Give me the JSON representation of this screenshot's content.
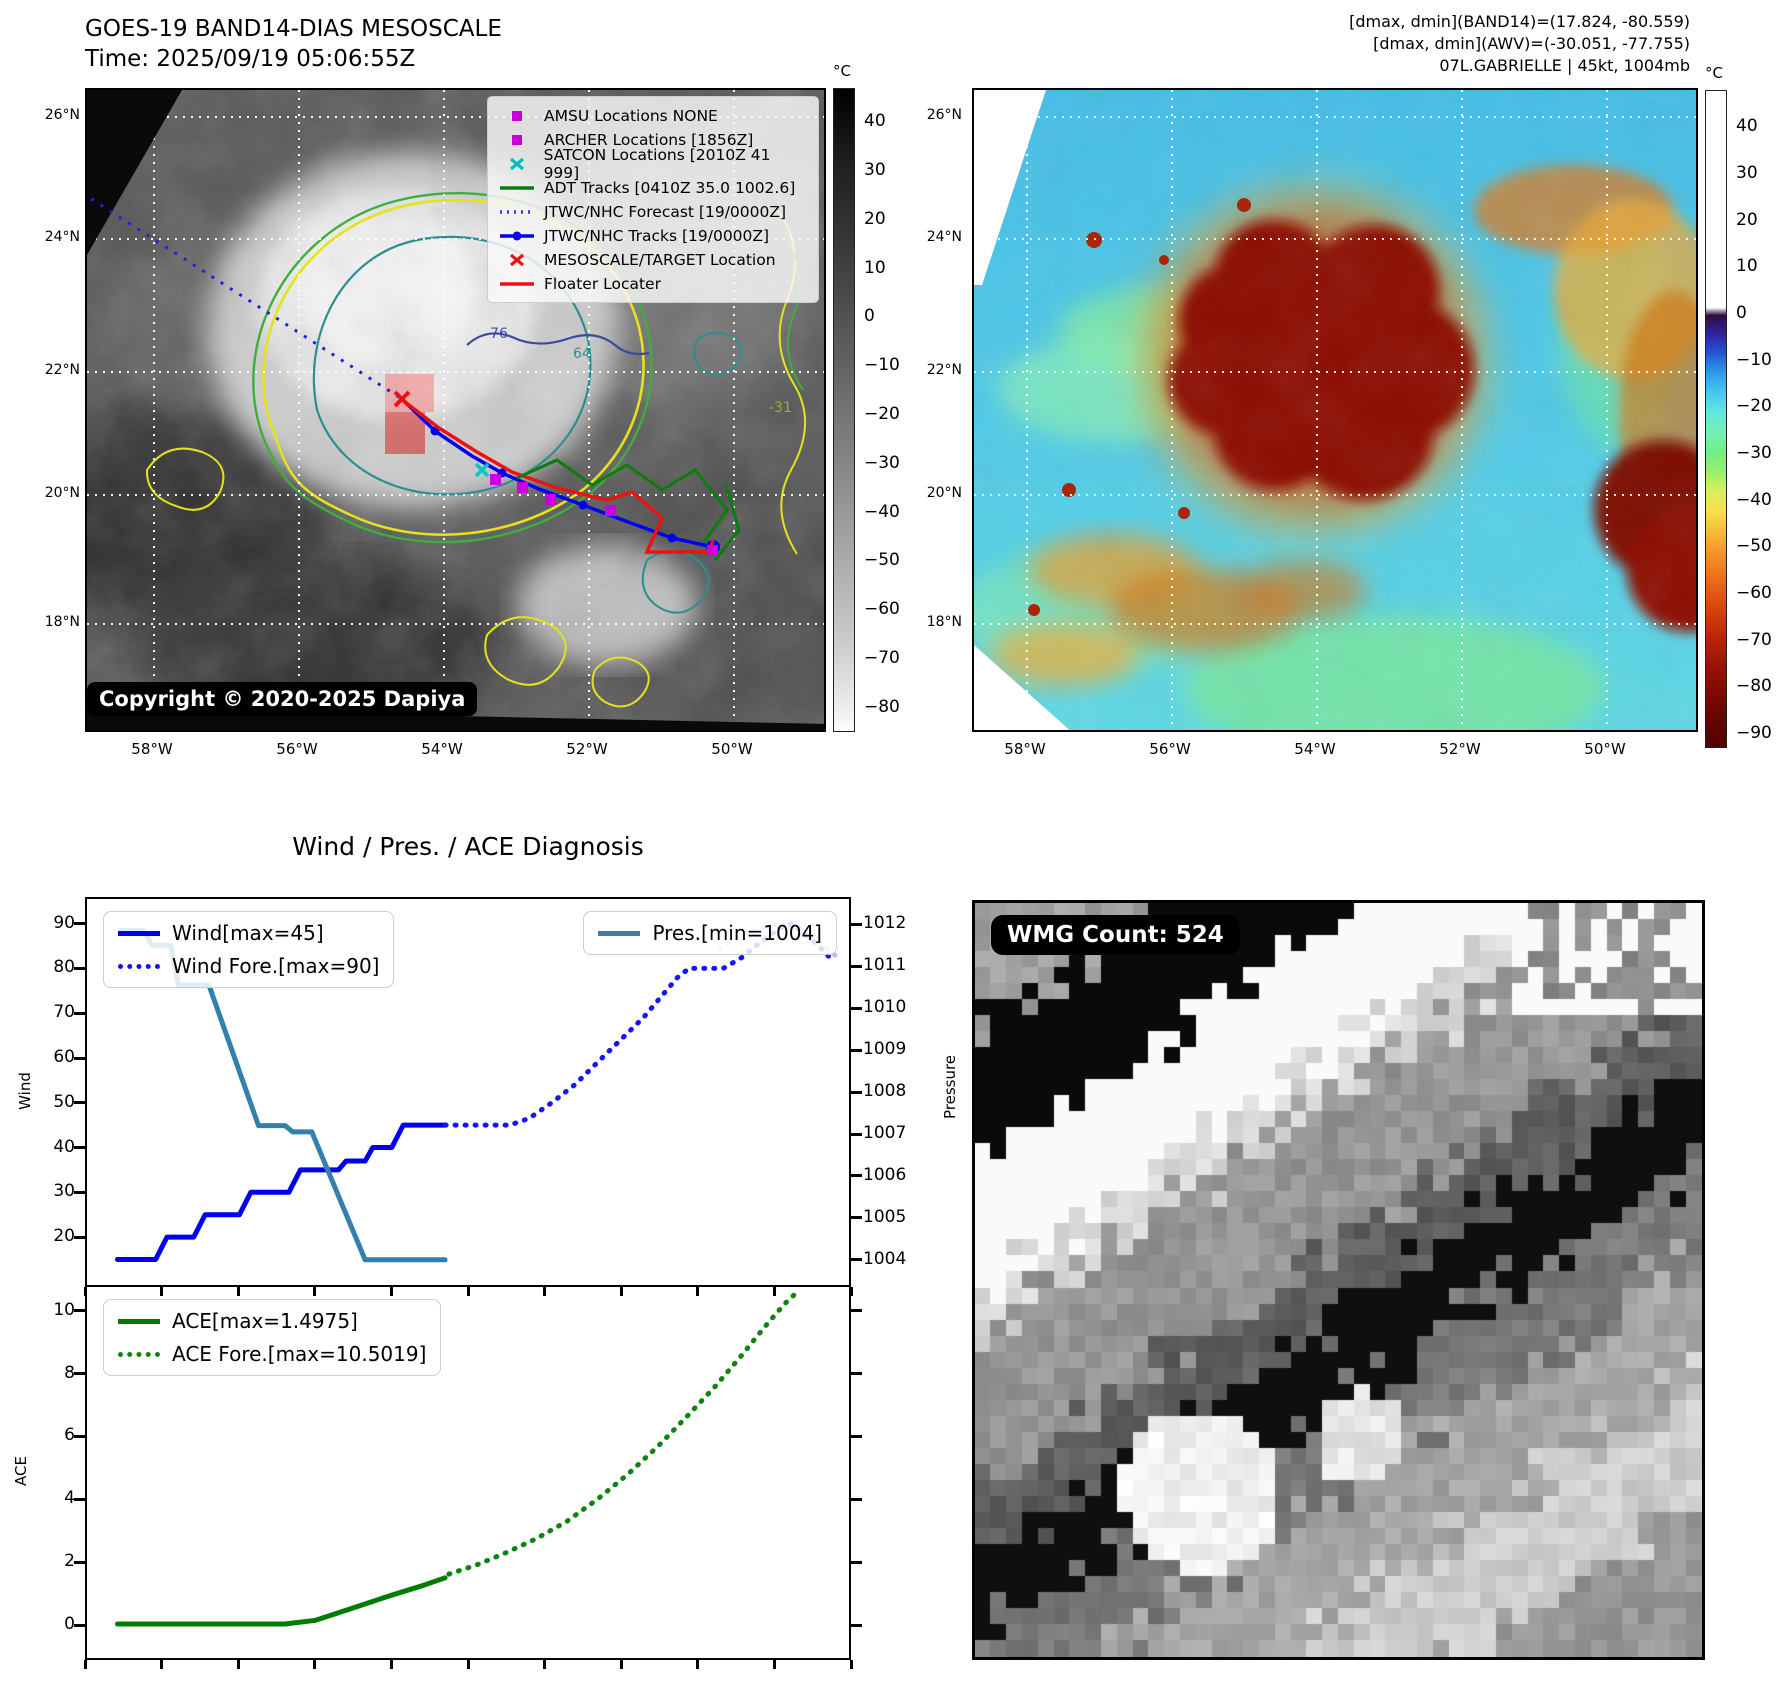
{
  "top_left_map": {
    "title_line1": "GOES-19 BAND14-DIAS MESOSCALE",
    "title_line2": "Time: 2025/09/19 05:06:55Z",
    "copyright": "Copyright © 2020-2025 Dapiya",
    "lat_ticks": [
      "26°N",
      "24°N",
      "22°N",
      "20°N",
      "18°N"
    ],
    "lon_ticks": [
      "58°W",
      "56°W",
      "54°W",
      "52°W",
      "50°W"
    ],
    "contour_labels": {
      "navy": "-76",
      "teal": "64",
      "green": "-31"
    },
    "colorbar": {
      "unit": "°C",
      "ticks": [
        40,
        30,
        20,
        10,
        0,
        -10,
        -20,
        -30,
        -40,
        -50,
        -60,
        -70,
        -80
      ]
    },
    "legend": [
      {
        "type": "square",
        "color": "#cc00dd",
        "label": "AMSU Locations NONE"
      },
      {
        "type": "square",
        "color": "#cc00dd",
        "label": "ARCHER Locations [1856Z]"
      },
      {
        "type": "x",
        "color": "#00bcbc",
        "label": "SATCON Locations [2010Z 41 999]"
      },
      {
        "type": "line",
        "color": "#0b7d0b",
        "label": "ADT Tracks [0410Z 35.0 1002.6]"
      },
      {
        "type": "dotted",
        "color": "#3333ff",
        "label": "JTWC/NHC Forecast [19/0000Z]"
      },
      {
        "type": "linedot",
        "color": "#0000ee",
        "label": "JTWC/NHC Tracks [19/0000Z]"
      },
      {
        "type": "x",
        "color": "#ee1111",
        "label": "MESOSCALE/TARGET Location"
      },
      {
        "type": "line",
        "color": "#ee1111",
        "label": "Floater Locater"
      }
    ]
  },
  "top_right_map": {
    "header_line1": "[dmax, dmin](BAND14)=(17.824, -80.559)",
    "header_line2": "[dmax, dmin](AWV)=(-30.051, -77.755)",
    "header_line3": "07L.GABRIELLE | 45kt, 1004mb",
    "lat_ticks": [
      "26°N",
      "24°N",
      "22°N",
      "20°N",
      "18°N"
    ],
    "lon_ticks": [
      "58°W",
      "56°W",
      "54°W",
      "52°W",
      "50°W"
    ],
    "colorbar": {
      "unit": "°C",
      "ticks": [
        40,
        30,
        20,
        10,
        0,
        -10,
        -20,
        -30,
        -40,
        -50,
        -60,
        -70,
        -80,
        -90
      ]
    }
  },
  "wmg_panel": {
    "badge": "WMG Count: 524"
  },
  "diagnosis_title": "Wind / Pres. / ACE Diagnosis",
  "chart_data": [
    {
      "id": "wind_pres",
      "type": "line",
      "ylabel": "Wind",
      "y2label": "Pressure",
      "ylim": [
        9.3,
        95.5
      ],
      "y2lim": [
        1003.4,
        1012.6
      ],
      "yticks": [
        20,
        30,
        40,
        50,
        60,
        70,
        80,
        90
      ],
      "y2ticks": [
        1004,
        1005,
        1006,
        1007,
        1008,
        1009,
        1010,
        1011,
        1012
      ],
      "legend_wind_1": "Wind[max=45]",
      "legend_wind_2": "Wind Fore.[max=90]",
      "legend_pres": "Pres.[min=1004]",
      "series": [
        {
          "name": "Wind",
          "axis": "y",
          "style": "solid",
          "color": "#0000ee",
          "width": 5,
          "points": [
            [
              4,
              15
            ],
            [
              9,
              15
            ],
            [
              10.5,
              20
            ],
            [
              14,
              20
            ],
            [
              15.5,
              25
            ],
            [
              20,
              25
            ],
            [
              21.5,
              30
            ],
            [
              26.5,
              30
            ],
            [
              28,
              35
            ],
            [
              33,
              35
            ],
            [
              34,
              37
            ],
            [
              36.5,
              37
            ],
            [
              37.5,
              40
            ],
            [
              40,
              40
            ],
            [
              41.5,
              45
            ],
            [
              47,
              45
            ]
          ]
        },
        {
          "name": "Wind Fore.",
          "axis": "y",
          "style": "dotted",
          "color": "#1414ff",
          "width": 5,
          "points": [
            [
              47,
              45
            ],
            [
              55.5,
              45
            ],
            [
              58,
              46.5
            ],
            [
              61,
              50
            ],
            [
              64,
              54
            ],
            [
              67,
              59
            ],
            [
              70,
              64
            ],
            [
              73,
              69
            ],
            [
              75.5,
              74
            ],
            [
              77.5,
              78
            ],
            [
              79,
              80
            ],
            [
              83.5,
              80
            ],
            [
              86,
              82.5
            ],
            [
              88.5,
              86
            ],
            [
              91,
              89
            ],
            [
              92.5,
              90
            ],
            [
              94,
              88
            ],
            [
              96,
              85
            ],
            [
              98,
              81.5
            ]
          ]
        },
        {
          "name": "Pres.",
          "axis": "y2",
          "style": "solid",
          "color": "#3380ad",
          "width": 5,
          "points": [
            [
              4.5,
              1011.85
            ],
            [
              7.5,
              1011.85
            ],
            [
              8.5,
              1011.5
            ],
            [
              11,
              1011.5
            ],
            [
              12,
              1010.55
            ],
            [
              16,
              1010.55
            ],
            [
              22.5,
              1007.2
            ],
            [
              26,
              1007.2
            ],
            [
              27,
              1007.05
            ],
            [
              29.5,
              1007.05
            ],
            [
              36.5,
              1004
            ],
            [
              47,
              1004
            ]
          ]
        },
        {
          "name": "Pres. Fore. (faded)",
          "axis": "y2",
          "style": "dotted",
          "color": "#b9c2f0",
          "width": 5,
          "points": [
            [
              83,
              1011.4
            ],
            [
              86,
              1011.75
            ],
            [
              89,
              1011.95
            ],
            [
              91.5,
              1012
            ],
            [
              93.5,
              1011.9
            ],
            [
              95.5,
              1011.65
            ],
            [
              97.5,
              1011.35
            ],
            [
              99,
              1011.15
            ]
          ]
        }
      ]
    },
    {
      "id": "ace",
      "type": "line",
      "ylabel": "ACE",
      "ylim": [
        -1.05,
        10.75
      ],
      "yticks": [
        0,
        2,
        4,
        6,
        8,
        10
      ],
      "legend_ace_1": "ACE[max=1.4975]",
      "legend_ace_2": "ACE Fore.[max=10.5019]",
      "series": [
        {
          "name": "ACE",
          "axis": "y",
          "style": "solid",
          "color": "#007c00",
          "width": 5,
          "points": [
            [
              4,
              0.03
            ],
            [
              26,
              0.03
            ],
            [
              30,
              0.15
            ],
            [
              35,
              0.55
            ],
            [
              40,
              0.95
            ],
            [
              44,
              1.25
            ],
            [
              47,
              1.5
            ]
          ]
        },
        {
          "name": "ACE Fore.",
          "axis": "y",
          "style": "dotted",
          "color": "#0e840e",
          "width": 5,
          "points": [
            [
              47.5,
              1.62
            ],
            [
              51,
              1.9
            ],
            [
              55,
              2.3
            ],
            [
              59,
              2.75
            ],
            [
              63,
              3.3
            ],
            [
              67,
              4
            ],
            [
              71,
              4.8
            ],
            [
              75,
              5.7
            ],
            [
              79,
              6.7
            ],
            [
              82.5,
              7.6
            ],
            [
              86,
              8.6
            ],
            [
              89,
              9.5
            ],
            [
              91.5,
              10.2
            ],
            [
              92.8,
              10.5
            ]
          ]
        }
      ]
    }
  ]
}
